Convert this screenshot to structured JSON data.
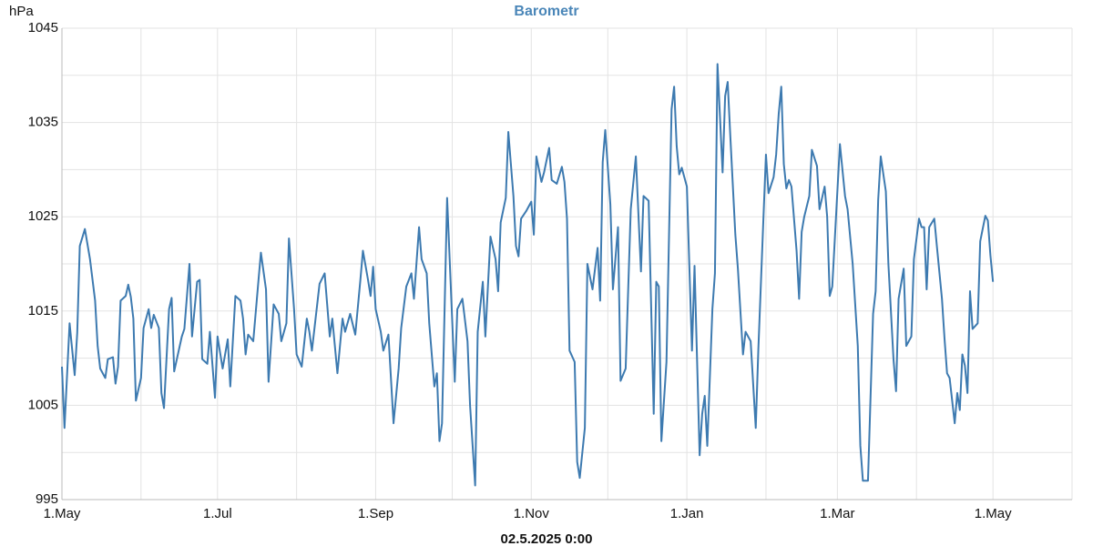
{
  "chart_data": {
    "type": "line",
    "title": "Barometr",
    "y_label": "hPa",
    "x_label": "02.5.2025 0:00",
    "color": "#3d7ab0",
    "xlim": [
      0,
      396
    ],
    "ylim": [
      995,
      1045
    ],
    "xticks": [
      {
        "value": 0,
        "label": "1.May"
      },
      {
        "value": 61,
        "label": "1.Jul"
      },
      {
        "value": 123,
        "label": "1.Sep"
      },
      {
        "value": 184,
        "label": "1.Nov"
      },
      {
        "value": 245,
        "label": "1.Jan"
      },
      {
        "value": 304,
        "label": "1.Mar"
      },
      {
        "value": 365,
        "label": "1.May"
      }
    ],
    "xminor": [
      31,
      92,
      153,
      214,
      276,
      335,
      396
    ],
    "yticks": [
      995,
      1005,
      1015,
      1025,
      1035,
      1045
    ],
    "yminor": [
      1000,
      1010,
      1020,
      1030,
      1040
    ],
    "grid": true,
    "x": [
      0,
      1,
      3,
      5,
      6,
      7,
      9,
      11,
      13,
      14,
      15,
      17,
      18,
      20,
      21,
      22,
      23,
      25,
      26,
      27,
      28,
      29,
      31,
      32,
      34,
      35,
      36,
      38,
      39,
      40,
      42,
      43,
      44,
      47,
      48,
      50,
      51,
      53,
      54,
      55,
      57,
      58,
      60,
      61,
      63,
      65,
      66,
      68,
      70,
      71,
      72,
      73,
      75,
      77,
      78,
      80,
      81,
      83,
      85,
      86,
      88,
      89,
      91,
      92,
      94,
      96,
      97,
      98,
      101,
      103,
      105,
      106,
      108,
      110,
      111,
      113,
      115,
      117,
      118,
      120,
      121,
      122,
      123,
      125,
      126,
      128,
      130,
      132,
      133,
      135,
      137,
      138,
      140,
      141,
      143,
      144,
      146,
      147,
      148,
      149,
      151,
      152,
      154,
      155,
      157,
      159,
      160,
      162,
      163,
      165,
      166,
      168,
      170,
      171,
      172,
      174,
      175,
      177,
      178,
      179,
      180,
      182,
      184,
      185,
      186,
      188,
      189,
      191,
      192,
      194,
      196,
      197,
      198,
      199,
      201,
      202,
      203,
      205,
      206,
      208,
      210,
      211,
      212,
      213,
      215,
      216,
      218,
      219,
      221,
      223,
      225,
      227,
      228,
      230,
      232,
      233,
      234,
      235,
      237,
      239,
      240,
      241,
      242,
      243,
      245,
      247,
      248,
      250,
      251,
      252,
      253,
      255,
      256,
      257,
      259,
      260,
      261,
      262,
      264,
      265,
      267,
      268,
      270,
      272,
      273,
      275,
      276,
      277,
      279,
      280,
      281,
      282,
      283,
      284,
      285,
      286,
      288,
      289,
      290,
      291,
      293,
      294,
      296,
      297,
      299,
      300,
      301,
      302,
      304,
      305,
      307,
      308,
      310,
      312,
      313,
      314,
      316,
      318,
      319,
      320,
      321,
      323,
      324,
      326,
      327,
      328,
      330,
      331,
      333,
      334,
      336,
      337,
      338,
      339,
      340,
      342,
      343,
      345,
      346,
      347,
      348,
      350,
      351,
      352,
      353,
      354,
      355,
      356,
      357,
      359,
      360,
      362,
      363,
      364,
      365
    ],
    "values": [
      1009.1,
      1002.6,
      1013.7,
      1008.2,
      1012.7,
      1021.9,
      1023.7,
      1020.5,
      1016.1,
      1011.3,
      1008.9,
      1007.9,
      1009.9,
      1010.1,
      1007.3,
      1009.1,
      1016.1,
      1016.6,
      1017.8,
      1016.5,
      1014.2,
      1005.5,
      1007.9,
      1013.2,
      1015.2,
      1013.2,
      1014.6,
      1013.2,
      1006.3,
      1004.7,
      1015.2,
      1016.4,
      1008.6,
      1012.3,
      1013.1,
      1020.0,
      1012.3,
      1018.1,
      1018.3,
      1009.9,
      1009.4,
      1012.8,
      1005.8,
      1012.3,
      1008.9,
      1012.0,
      1007.0,
      1016.6,
      1016.1,
      1014.2,
      1010.4,
      1012.5,
      1011.8,
      1018.1,
      1021.2,
      1017.3,
      1007.5,
      1015.7,
      1014.7,
      1011.8,
      1013.7,
      1022.7,
      1015.2,
      1010.4,
      1009.1,
      1014.2,
      1012.8,
      1010.8,
      1017.9,
      1019.0,
      1012.3,
      1014.2,
      1008.4,
      1014.2,
      1012.8,
      1014.7,
      1012.5,
      1018.3,
      1021.4,
      1018.3,
      1016.6,
      1019.7,
      1015.2,
      1012.8,
      1010.8,
      1012.5,
      1003.1,
      1008.9,
      1013.2,
      1017.6,
      1019.0,
      1016.3,
      1023.9,
      1020.5,
      1019.0,
      1013.7,
      1007.0,
      1008.4,
      1001.2,
      1003.1,
      1027.0,
      1020.5,
      1007.5,
      1015.2,
      1016.3,
      1011.8,
      1005.0,
      996.5,
      1012.8,
      1018.1,
      1012.3,
      1022.9,
      1020.5,
      1017.1,
      1024.4,
      1027.0,
      1034.0,
      1027.2,
      1021.9,
      1020.8,
      1024.8,
      1025.6,
      1026.6,
      1023.1,
      1031.4,
      1028.7,
      1029.7,
      1032.3,
      1028.9,
      1028.5,
      1030.3,
      1028.7,
      1024.8,
      1010.8,
      1009.6,
      999.0,
      997.3,
      1002.6,
      1020.0,
      1017.3,
      1021.7,
      1016.1,
      1030.8,
      1034.2,
      1026.3,
      1017.3,
      1023.9,
      1007.6,
      1008.9,
      1025.8,
      1031.4,
      1019.2,
      1027.2,
      1026.7,
      1004.1,
      1018.1,
      1017.6,
      1001.2,
      1009.6,
      1036.4,
      1038.8,
      1032.5,
      1029.5,
      1030.2,
      1028.2,
      1010.8,
      1019.8,
      999.7,
      1004.1,
      1006.0,
      1000.7,
      1015.2,
      1019.0,
      1041.2,
      1029.7,
      1037.8,
      1039.3,
      1033.7,
      1023.1,
      1019.5,
      1010.4,
      1012.8,
      1011.8,
      1002.6,
      1010.8,
      1024.8,
      1031.6,
      1027.5,
      1029.2,
      1031.6,
      1035.9,
      1038.8,
      1030.6,
      1028.0,
      1028.9,
      1028.2,
      1021.4,
      1016.3,
      1023.4,
      1025.0,
      1027.2,
      1032.1,
      1030.4,
      1025.8,
      1028.2,
      1025.0,
      1016.6,
      1017.6,
      1027.7,
      1032.7,
      1027.2,
      1025.8,
      1020.0,
      1011.3,
      1000.7,
      997.0,
      997.0,
      1014.7,
      1017.1,
      1026.8,
      1031.4,
      1027.7,
      1020.0,
      1009.9,
      1006.5,
      1016.3,
      1019.5,
      1011.3,
      1012.3,
      1020.5,
      1024.8,
      1023.9,
      1023.9,
      1017.3,
      1023.9,
      1024.8,
      1021.9,
      1016.3,
      1012.1,
      1008.4,
      1007.9,
      1003.1,
      1006.3,
      1004.5,
      1010.4,
      1009.2,
      1006.3,
      1017.1,
      1013.1,
      1013.7,
      1022.4,
      1025.1,
      1024.6,
      1020.9,
      1018.1
    ]
  }
}
